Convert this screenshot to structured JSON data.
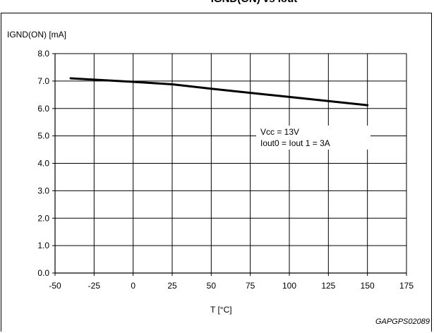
{
  "header": {
    "title": "IGND(ON) vs Iout"
  },
  "chart_data": {
    "type": "line",
    "title": "IGND(ON) vs Iout",
    "xlabel": "T [°C]",
    "ylabel": "IGND(ON) [mA]",
    "xlim": [
      -50,
      175
    ],
    "ylim": [
      0,
      8
    ],
    "x_ticks": [
      "-50",
      "-25",
      "0",
      "25",
      "50",
      "75",
      "100",
      "125",
      "150",
      "175"
    ],
    "y_ticks": [
      "0.0",
      "1.0",
      "2.0",
      "3.0",
      "4.0",
      "5.0",
      "6.0",
      "7.0",
      "8.0"
    ],
    "grid": true,
    "series": [
      {
        "x": [
          -40,
          -25,
          0,
          25,
          50,
          75,
          100,
          125,
          150
        ],
        "y": [
          7.1,
          7.05,
          6.97,
          6.88,
          6.72,
          6.57,
          6.42,
          6.27,
          6.12
        ]
      }
    ],
    "annotation": [
      "Vcc = 13V",
      "Iout0 = Iout 1 = 3A"
    ]
  },
  "footer": {
    "source_id": "GAPGPS02089"
  }
}
